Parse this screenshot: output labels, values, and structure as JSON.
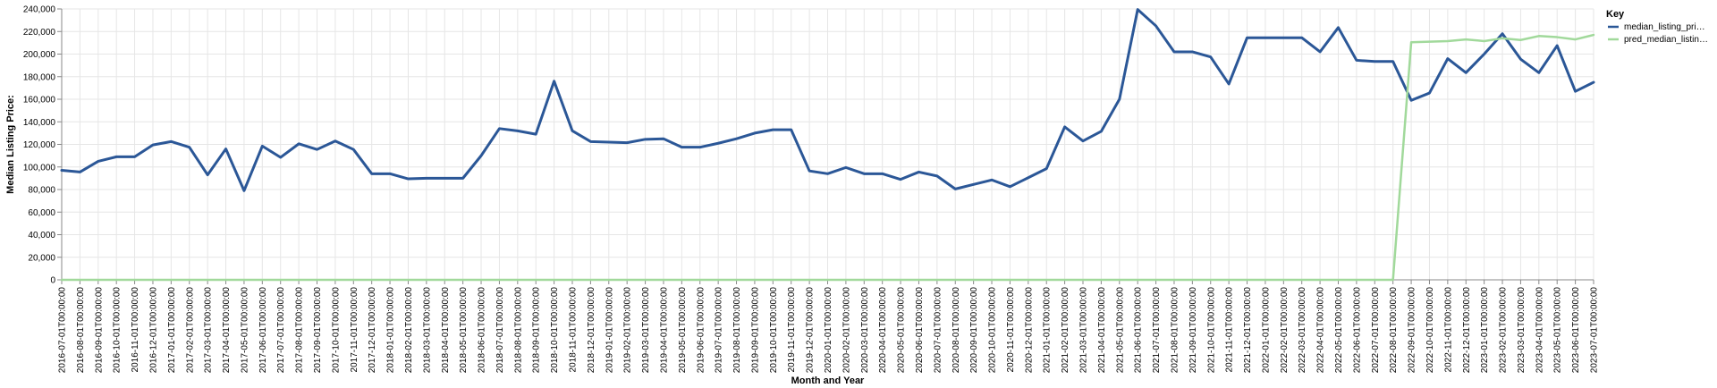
{
  "chart_data": {
    "type": "line",
    "xlabel": "Month and Year",
    "ylabel": "Median Listing Price:",
    "ylim": [
      0,
      240000
    ],
    "yticks": [
      "0",
      "20,000",
      "40,000",
      "60,000",
      "80,000",
      "100,000",
      "120,000",
      "140,000",
      "160,000",
      "180,000",
      "200,000",
      "220,000",
      "240,000"
    ],
    "grid": true,
    "legend": {
      "title": "Key",
      "position": "top-right",
      "entries": [
        "median_listing_pri…",
        "pred_median_listin…"
      ]
    },
    "categories": [
      "2016-07-01T00:00:00",
      "2016-08-01T00:00:00",
      "2016-09-01T00:00:00",
      "2016-10-01T00:00:00",
      "2016-11-01T00:00:00",
      "2016-12-01T00:00:00",
      "2017-01-01T00:00:00",
      "2017-02-01T00:00:00",
      "2017-03-01T00:00:00",
      "2017-04-01T00:00:00",
      "2017-05-01T00:00:00",
      "2017-06-01T00:00:00",
      "2017-07-01T00:00:00",
      "2017-08-01T00:00:00",
      "2017-09-01T00:00:00",
      "2017-10-01T00:00:00",
      "2017-11-01T00:00:00",
      "2017-12-01T00:00:00",
      "2018-01-01T00:00:00",
      "2018-02-01T00:00:00",
      "2018-03-01T00:00:00",
      "2018-04-01T00:00:00",
      "2018-05-01T00:00:00",
      "2018-06-01T00:00:00",
      "2018-07-01T00:00:00",
      "2018-08-01T00:00:00",
      "2018-09-01T00:00:00",
      "2018-10-01T00:00:00",
      "2018-11-01T00:00:00",
      "2018-12-01T00:00:00",
      "2019-01-01T00:00:00",
      "2019-02-01T00:00:00",
      "2019-03-01T00:00:00",
      "2019-04-01T00:00:00",
      "2019-05-01T00:00:00",
      "2019-06-01T00:00:00",
      "2019-07-01T00:00:00",
      "2019-08-01T00:00:00",
      "2019-09-01T00:00:00",
      "2019-10-01T00:00:00",
      "2019-11-01T00:00:00",
      "2019-12-01T00:00:00",
      "2020-01-01T00:00:00",
      "2020-02-01T00:00:00",
      "2020-03-01T00:00:00",
      "2020-04-01T00:00:00",
      "2020-05-01T00:00:00",
      "2020-06-01T00:00:00",
      "2020-07-01T00:00:00",
      "2020-08-01T00:00:00",
      "2020-09-01T00:00:00",
      "2020-10-01T00:00:00",
      "2020-11-01T00:00:00",
      "2020-12-01T00:00:00",
      "2021-01-01T00:00:00",
      "2021-02-01T00:00:00",
      "2021-03-01T00:00:00",
      "2021-04-01T00:00:00",
      "2021-05-01T00:00:00",
      "2021-06-01T00:00:00",
      "2021-07-01T00:00:00",
      "2021-08-01T00:00:00",
      "2021-09-01T00:00:00",
      "2021-10-01T00:00:00",
      "2021-11-01T00:00:00",
      "2021-12-01T00:00:00",
      "2022-01-01T00:00:00",
      "2022-02-01T00:00:00",
      "2022-03-01T00:00:00",
      "2022-04-01T00:00:00",
      "2022-05-01T00:00:00",
      "2022-06-01T00:00:00",
      "2022-07-01T00:00:00",
      "2022-08-01T00:00:00",
      "2022-09-01T00:00:00",
      "2022-10-01T00:00:00",
      "2022-11-01T00:00:00",
      "2022-12-01T00:00:00",
      "2023-01-01T00:00:00",
      "2023-02-01T00:00:00",
      "2023-03-01T00:00:00",
      "2023-04-01T00:00:00",
      "2023-05-01T00:00:00",
      "2023-06-01T00:00:00",
      "2023-07-01T00:00:00"
    ],
    "series": [
      {
        "name": "median_listing_pri…",
        "color": "#2b5797",
        "values": [
          97000,
          95500,
          105000,
          109000,
          109000,
          119500,
          122500,
          117500,
          93000,
          116000,
          79000,
          118500,
          108500,
          120500,
          115500,
          123000,
          115500,
          94000,
          94000,
          89500,
          90000,
          90000,
          90000,
          110000,
          134000,
          132000,
          129000,
          176000,
          132000,
          122500,
          122000,
          121500,
          124500,
          125000,
          117500,
          117500,
          121000,
          125000,
          130000,
          133000,
          133000,
          96500,
          94000,
          99500,
          94000,
          94000,
          89000,
          95500,
          92000,
          80500,
          84500,
          88500,
          82500,
          90500,
          98500,
          135500,
          123000,
          131500,
          160000,
          239500,
          225000,
          202000,
          202000,
          197500,
          173500,
          214500,
          214500,
          214500,
          214500,
          202000,
          223500,
          194500,
          193500,
          193500,
          159000,
          165500,
          196000,
          183500,
          200000,
          218000,
          195500,
          183500,
          207500,
          167000,
          175000
        ]
      },
      {
        "name": "pred_median_listin…",
        "color": "#a1d99b",
        "values": [
          0,
          0,
          0,
          0,
          0,
          0,
          0,
          0,
          0,
          0,
          0,
          0,
          0,
          0,
          0,
          0,
          0,
          0,
          0,
          0,
          0,
          0,
          0,
          0,
          0,
          0,
          0,
          0,
          0,
          0,
          0,
          0,
          0,
          0,
          0,
          0,
          0,
          0,
          0,
          0,
          0,
          0,
          0,
          0,
          0,
          0,
          0,
          0,
          0,
          0,
          0,
          0,
          0,
          0,
          0,
          0,
          0,
          0,
          0,
          0,
          0,
          0,
          0,
          0,
          0,
          0,
          0,
          0,
          0,
          0,
          0,
          0,
          0,
          0,
          210500,
          211000,
          211500,
          213000,
          211500,
          214000,
          212500,
          216000,
          215000,
          213000,
          217000
        ]
      }
    ]
  }
}
